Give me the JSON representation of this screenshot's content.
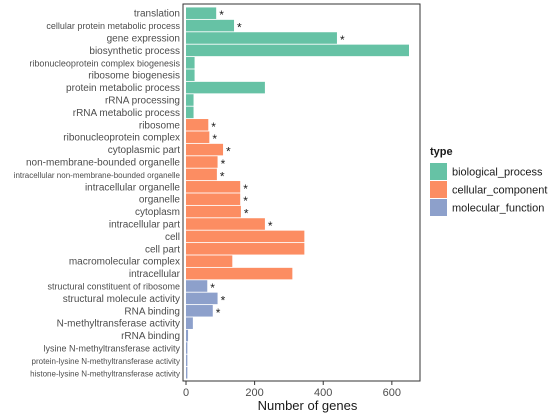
{
  "chart_data": {
    "type": "bar",
    "orientation": "horizontal",
    "title": "",
    "xlabel": "Number of genes",
    "ylabel": "",
    "xlim": [
      0,
      680
    ],
    "xticks": [
      0,
      200,
      400,
      600
    ],
    "grid": false,
    "legend": {
      "title": "type",
      "position": "right",
      "entries": [
        {
          "name": "biological_process",
          "color": "#66c2a5"
        },
        {
          "name": "cellular_component",
          "color": "#fc8d62"
        },
        {
          "name": "molecular_function",
          "color": "#8da0cb"
        }
      ]
    },
    "categories": [
      {
        "label": "translation",
        "value": 88,
        "type": "biological_process",
        "significant": true
      },
      {
        "label": "cellular protein metabolic process",
        "value": 140,
        "type": "biological_process",
        "significant": true
      },
      {
        "label": "gene expression",
        "value": 440,
        "type": "biological_process",
        "significant": true
      },
      {
        "label": "biosynthetic process",
        "value": 650,
        "type": "biological_process",
        "significant": false
      },
      {
        "label": "ribonucleoprotein complex biogenesis",
        "value": 25,
        "type": "biological_process",
        "significant": false
      },
      {
        "label": "ribosome biogenesis",
        "value": 25,
        "type": "biological_process",
        "significant": false
      },
      {
        "label": "protein metabolic process",
        "value": 230,
        "type": "biological_process",
        "significant": false
      },
      {
        "label": "rRNA processing",
        "value": 22,
        "type": "biological_process",
        "significant": false
      },
      {
        "label": "rRNA metabolic process",
        "value": 22,
        "type": "biological_process",
        "significant": false
      },
      {
        "label": "ribosome",
        "value": 65,
        "type": "cellular_component",
        "significant": true
      },
      {
        "label": "ribonucleoprotein complex",
        "value": 68,
        "type": "cellular_component",
        "significant": true
      },
      {
        "label": "cytoplasmic part",
        "value": 108,
        "type": "cellular_component",
        "significant": true
      },
      {
        "label": "non-membrane-bounded organelle",
        "value": 92,
        "type": "cellular_component",
        "significant": true
      },
      {
        "label": "intracellular non-membrane-bounded organelle",
        "value": 90,
        "type": "cellular_component",
        "significant": true
      },
      {
        "label": "intracellular organelle",
        "value": 158,
        "type": "cellular_component",
        "significant": true
      },
      {
        "label": "organelle",
        "value": 158,
        "type": "cellular_component",
        "significant": true
      },
      {
        "label": "cytoplasm",
        "value": 160,
        "type": "cellular_component",
        "significant": true
      },
      {
        "label": "intracellular part",
        "value": 230,
        "type": "cellular_component",
        "significant": true
      },
      {
        "label": "cell",
        "value": 345,
        "type": "cellular_component",
        "significant": false
      },
      {
        "label": "cell part",
        "value": 345,
        "type": "cellular_component",
        "significant": false
      },
      {
        "label": "macromolecular complex",
        "value": 135,
        "type": "cellular_component",
        "significant": false
      },
      {
        "label": "intracellular",
        "value": 310,
        "type": "cellular_component",
        "significant": false
      },
      {
        "label": "structural constituent of ribosome",
        "value": 62,
        "type": "molecular_function",
        "significant": true
      },
      {
        "label": "structural molecule activity",
        "value": 92,
        "type": "molecular_function",
        "significant": true
      },
      {
        "label": "RNA binding",
        "value": 78,
        "type": "molecular_function",
        "significant": true
      },
      {
        "label": "N-methyltransferase activity",
        "value": 20,
        "type": "molecular_function",
        "significant": false
      },
      {
        "label": "rRNA binding",
        "value": 6,
        "type": "molecular_function",
        "significant": false
      },
      {
        "label": "lysine N-methyltransferase activity",
        "value": 4,
        "type": "molecular_function",
        "significant": false
      },
      {
        "label": "protein-lysine N-methyltransferase activity",
        "value": 4,
        "type": "molecular_function",
        "significant": false
      },
      {
        "label": "histone-lysine N-methyltransferase activity",
        "value": 4,
        "type": "molecular_function",
        "significant": false
      }
    ],
    "significance_marker": "*",
    "colors": {
      "biological_process": "#66c2a5",
      "cellular_component": "#fc8d62",
      "molecular_function": "#8da0cb"
    }
  }
}
